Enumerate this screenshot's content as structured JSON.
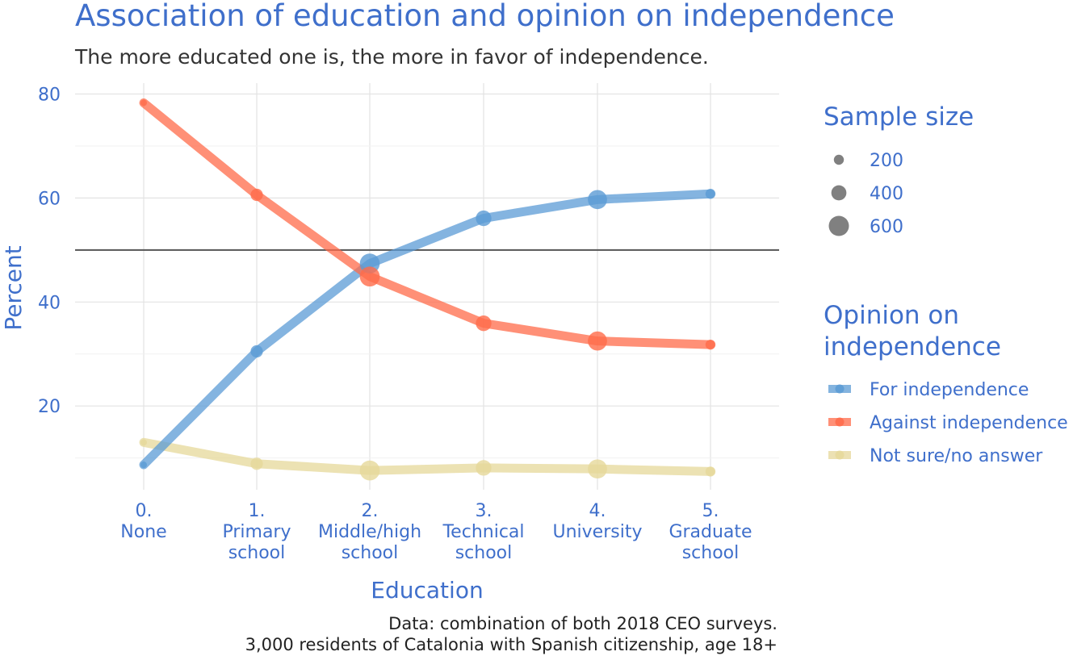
{
  "chart_data": {
    "type": "line",
    "title": "Association of education and opinion on independence",
    "subtitle": "The more educated one is, the more in favor of independence.",
    "xlabel": "Education",
    "ylabel": "Percent",
    "categories": [
      "0.\nNone",
      "1.\nPrimary\nschool",
      "2.\nMiddle/high\nschool",
      "3.\nTechnical\nschool",
      "4.\nUniversity",
      "5.\nGraduate\nschool"
    ],
    "ylim": [
      0,
      80
    ],
    "yticks": [
      20,
      40,
      60,
      80
    ],
    "reference_line": 50,
    "grid": true,
    "series": [
      {
        "name": "For independence",
        "color": "#5B9BD5",
        "values": [
          8.7,
          30.5,
          47.4,
          56.1,
          59.7,
          60.8
        ],
        "sample_size": [
          30,
          290,
          590,
          420,
          560,
          200
        ]
      },
      {
        "name": "Against independence",
        "color": "#FF6B4A",
        "values": [
          78.3,
          60.6,
          44.9,
          35.9,
          32.5,
          31.8
        ],
        "sample_size": [
          30,
          290,
          590,
          420,
          560,
          200
        ]
      },
      {
        "name": "Not sure/no answer",
        "color": "#E6D89A",
        "values": [
          13.0,
          8.9,
          7.6,
          8.1,
          7.9,
          7.4
        ],
        "sample_size": [
          30,
          290,
          590,
          420,
          560,
          200
        ]
      }
    ],
    "legend_size": {
      "title": "Sample size",
      "values": [
        200,
        400,
        600
      ]
    },
    "legend_color": {
      "title": "Opinion on\nindependence",
      "placement": "right"
    },
    "caption": "Data: combination of both 2018 CEO surveys.\n3,000 residents of Catalonia with Spanish citizenship, age 18+"
  }
}
